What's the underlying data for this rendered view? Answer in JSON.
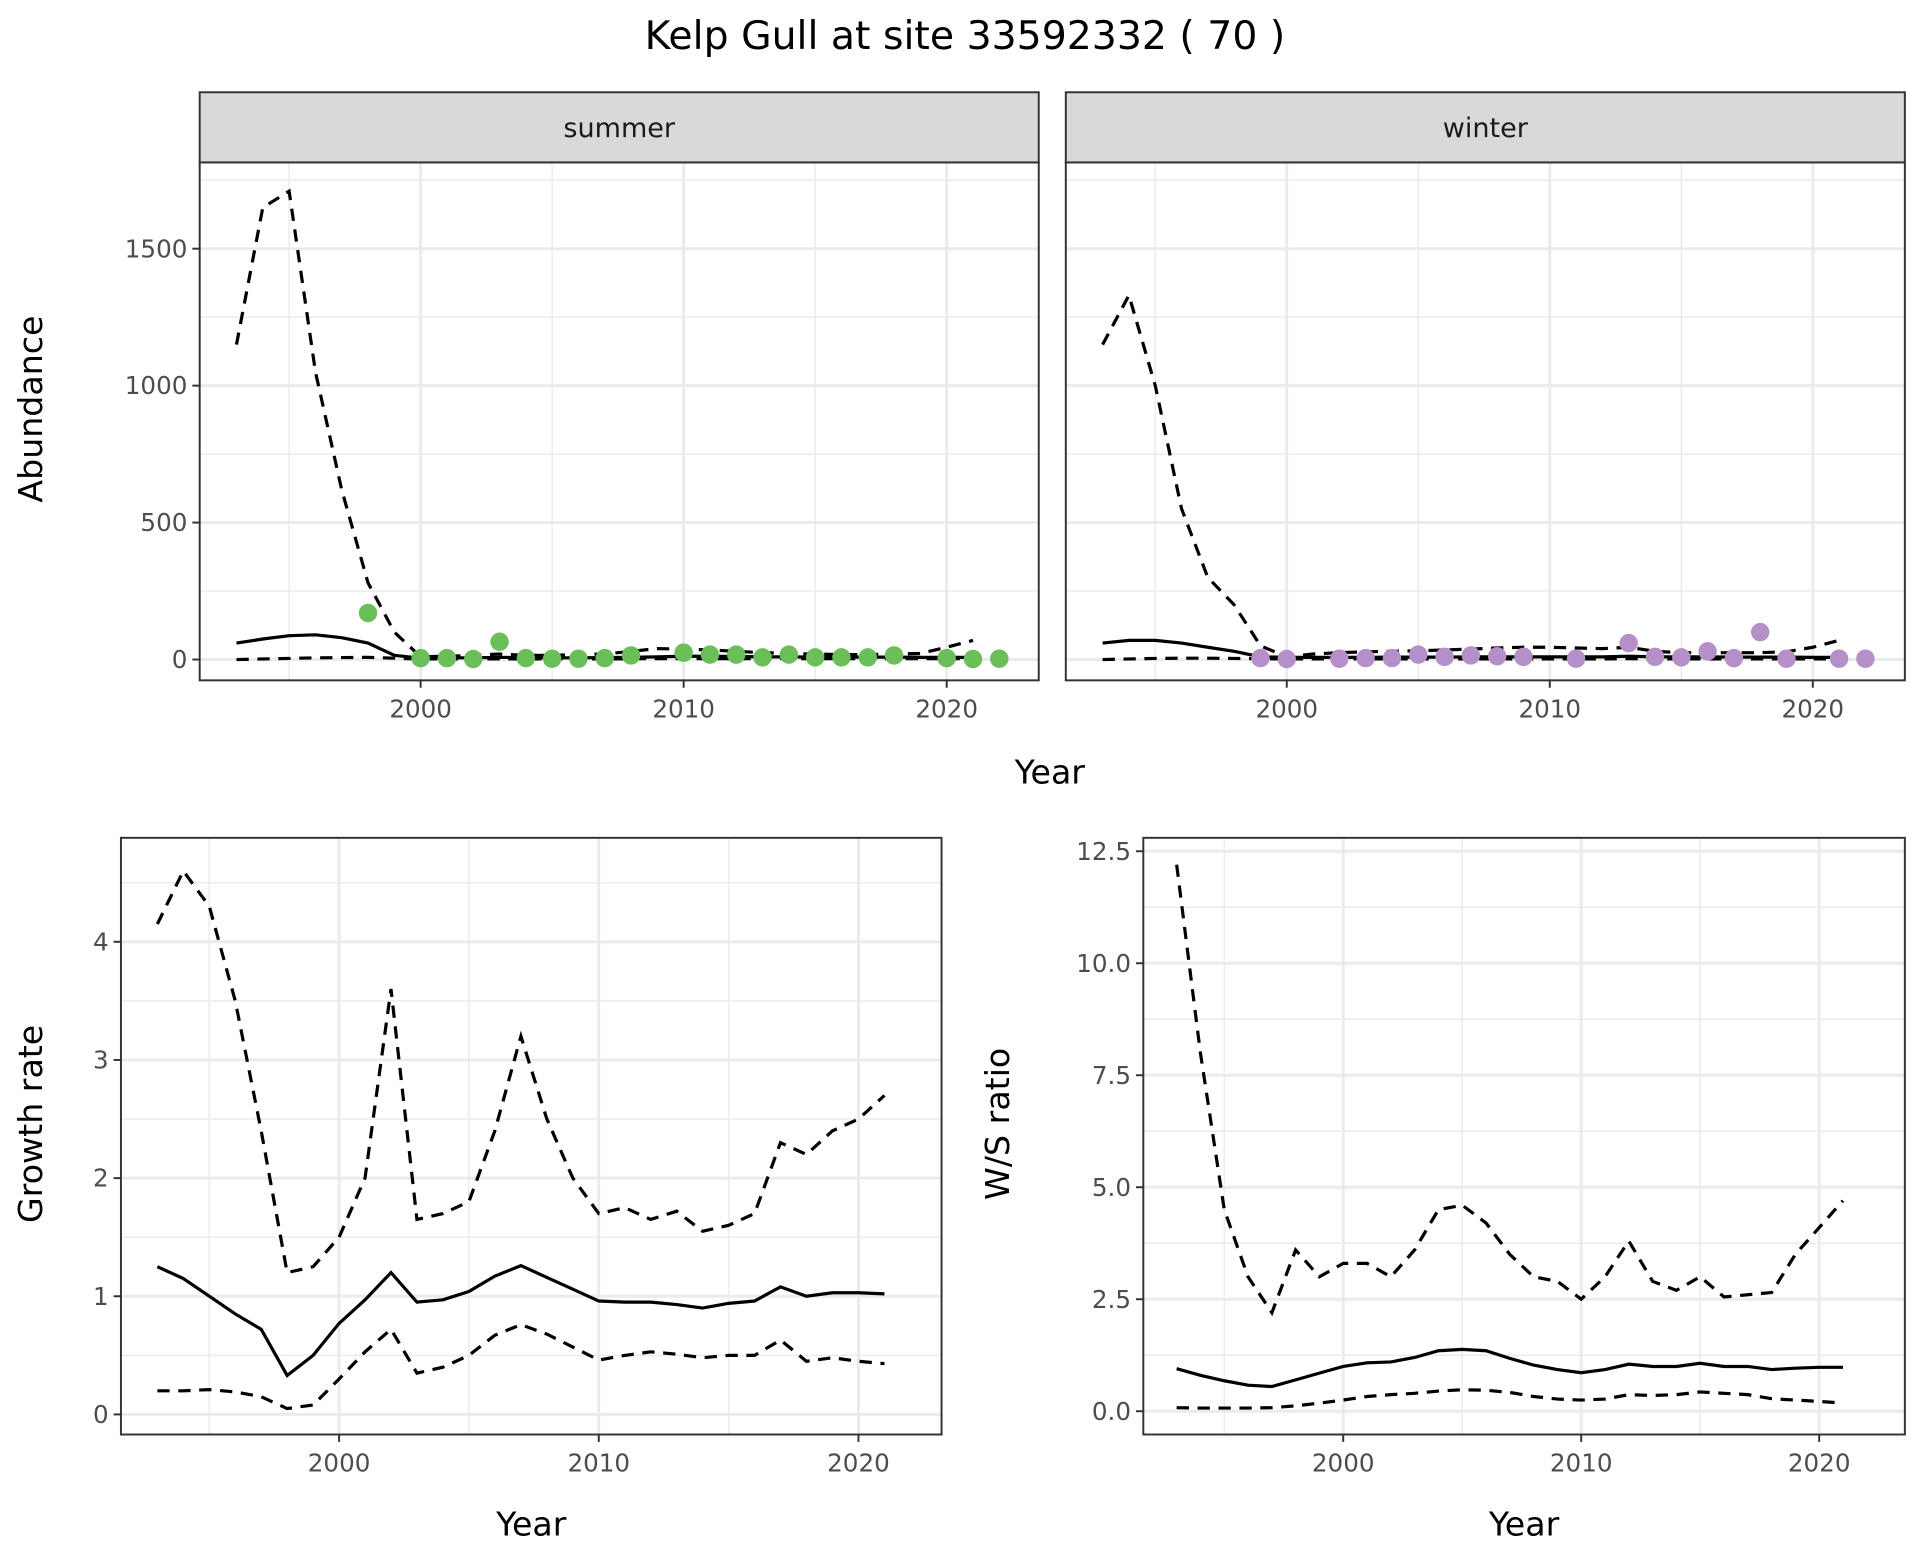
{
  "title": "Kelp Gull at site 33592332 ( 70 )",
  "chart_data": [
    {
      "type": "line",
      "facet": "summer",
      "ylabel": "Abundance",
      "xlabel": "",
      "xlim": [
        1991.6,
        2023.5
      ],
      "ylim": [
        -76,
        1815
      ],
      "xticks": [
        2000,
        2010,
        2020
      ],
      "yticks": [
        0,
        500,
        1000,
        1500
      ],
      "grid": true,
      "point_color": "#6ABF59",
      "x": [
        1993,
        1994,
        1995,
        1996,
        1997,
        1998,
        1999,
        2000,
        2001,
        2002,
        2003,
        2004,
        2005,
        2006,
        2007,
        2008,
        2009,
        2010,
        2011,
        2012,
        2013,
        2014,
        2015,
        2016,
        2017,
        2018,
        2019,
        2020,
        2021
      ],
      "upper": [
        1150,
        1650,
        1710,
        1050,
        620,
        280,
        100,
        10,
        12,
        15,
        20,
        15,
        15,
        18,
        20,
        30,
        40,
        38,
        35,
        30,
        25,
        22,
        20,
        18,
        18,
        20,
        22,
        45,
        70
      ],
      "estimate": [
        60,
        75,
        87,
        90,
        80,
        60,
        15,
        5,
        6,
        6,
        8,
        7,
        6,
        6,
        7,
        8,
        10,
        12,
        12,
        11,
        10,
        10,
        9,
        9,
        9,
        9,
        8,
        8,
        8
      ],
      "lower": [
        0,
        2,
        4,
        6,
        7,
        8,
        5,
        2,
        2,
        2,
        2,
        2,
        2,
        2,
        2,
        3,
        3,
        3,
        3,
        3,
        3,
        3,
        3,
        3,
        3,
        3,
        3,
        3,
        3
      ],
      "points": {
        "x": [
          1998,
          2000,
          2001,
          2002,
          2003,
          2004,
          2005,
          2006,
          2007,
          2008,
          2010,
          2011,
          2012,
          2013,
          2014,
          2015,
          2016,
          2017,
          2018,
          2020,
          2021,
          2022
        ],
        "y": [
          170,
          5,
          5,
          2,
          65,
          5,
          3,
          3,
          5,
          15,
          25,
          18,
          18,
          8,
          18,
          8,
          8,
          8,
          15,
          5,
          2,
          3
        ]
      }
    },
    {
      "type": "line",
      "facet": "winter",
      "ylabel": "",
      "xlabel": "",
      "xlim": [
        1991.6,
        2023.5
      ],
      "ylim": [
        -76,
        1815
      ],
      "xticks": [
        2000,
        2010,
        2020
      ],
      "grid": true,
      "point_color": "#B48FC8",
      "x": [
        1993,
        1994,
        1995,
        1996,
        1997,
        1998,
        1999,
        2000,
        2001,
        2002,
        2003,
        2004,
        2005,
        2006,
        2007,
        2008,
        2009,
        2010,
        2011,
        2012,
        2013,
        2014,
        2015,
        2016,
        2017,
        2018,
        2019,
        2020,
        2021
      ],
      "upper": [
        1150,
        1330,
        1000,
        550,
        300,
        200,
        50,
        10,
        20,
        25,
        28,
        30,
        32,
        35,
        38,
        42,
        45,
        45,
        42,
        40,
        45,
        30,
        25,
        25,
        25,
        25,
        28,
        45,
        70
      ],
      "estimate": [
        60,
        70,
        70,
        60,
        45,
        30,
        10,
        8,
        8,
        8,
        8,
        9,
        9,
        9,
        10,
        10,
        10,
        10,
        10,
        10,
        12,
        10,
        10,
        10,
        9,
        9,
        9,
        8,
        8
      ],
      "lower": [
        0,
        2,
        4,
        5,
        5,
        4,
        3,
        2,
        2,
        2,
        2,
        2,
        2,
        2,
        2,
        2,
        2,
        2,
        2,
        2,
        3,
        2,
        2,
        2,
        2,
        2,
        2,
        2,
        2
      ],
      "points": {
        "x": [
          1999,
          2000,
          2002,
          2003,
          2004,
          2005,
          2006,
          2007,
          2008,
          2009,
          2011,
          2013,
          2014,
          2015,
          2016,
          2017,
          2018,
          2019,
          2021,
          2022
        ],
        "y": [
          5,
          2,
          3,
          5,
          5,
          18,
          10,
          15,
          12,
          10,
          3,
          60,
          10,
          8,
          30,
          5,
          100,
          3,
          3,
          3
        ]
      }
    },
    {
      "type": "line",
      "ylabel": "Growth rate",
      "xlabel": "Year",
      "xlim": [
        1991.6,
        2023.2
      ],
      "ylim": [
        -0.17,
        4.88
      ],
      "xticks": [
        2000,
        2010,
        2020
      ],
      "yticks": [
        0,
        1,
        2,
        3,
        4
      ],
      "grid": true,
      "x": [
        1993,
        1994,
        1995,
        1996,
        1997,
        1998,
        1999,
        2000,
        2001,
        2002,
        2003,
        2004,
        2005,
        2006,
        2007,
        2008,
        2009,
        2010,
        2011,
        2012,
        2013,
        2014,
        2015,
        2016,
        2017,
        2018,
        2019,
        2020,
        2021
      ],
      "upper": [
        4.15,
        4.6,
        4.3,
        3.5,
        2.4,
        1.2,
        1.25,
        1.5,
        2.0,
        3.6,
        1.65,
        1.7,
        1.8,
        2.4,
        3.2,
        2.5,
        2.0,
        1.7,
        1.75,
        1.65,
        1.72,
        1.55,
        1.6,
        1.7,
        2.3,
        2.2,
        2.4,
        2.5,
        2.7
      ],
      "estimate": [
        1.25,
        1.15,
        1.0,
        0.85,
        0.72,
        0.33,
        0.5,
        0.77,
        0.97,
        1.2,
        0.95,
        0.97,
        1.04,
        1.17,
        1.26,
        1.16,
        1.06,
        0.96,
        0.95,
        0.95,
        0.93,
        0.9,
        0.94,
        0.96,
        1.08,
        1.0,
        1.03,
        1.03,
        1.02
      ],
      "lower": [
        0.2,
        0.2,
        0.21,
        0.19,
        0.15,
        0.05,
        0.08,
        0.3,
        0.53,
        0.72,
        0.35,
        0.4,
        0.5,
        0.67,
        0.76,
        0.68,
        0.57,
        0.46,
        0.5,
        0.53,
        0.51,
        0.48,
        0.5,
        0.5,
        0.63,
        0.45,
        0.48,
        0.45,
        0.43
      ]
    },
    {
      "type": "line",
      "ylabel": "W/S ratio",
      "xlabel": "Year",
      "xlim": [
        1991.6,
        2023.6
      ],
      "ylim": [
        -0.52,
        12.8
      ],
      "xticks": [
        2000,
        2010,
        2020
      ],
      "yticks": [
        0.0,
        2.5,
        5.0,
        7.5,
        10.0,
        12.5
      ],
      "ytick_labels": [
        "0.0",
        "2.5",
        "5.0",
        "7.5",
        "10.0",
        "12.5"
      ],
      "grid": true,
      "x": [
        1993,
        1994,
        1995,
        1996,
        1997,
        1998,
        1999,
        2000,
        2001,
        2002,
        2003,
        2004,
        2005,
        2006,
        2007,
        2008,
        2009,
        2010,
        2011,
        2012,
        2013,
        2014,
        2015,
        2016,
        2017,
        2018,
        2019,
        2020,
        2021
      ],
      "upper": [
        12.2,
        8.0,
        4.5,
        3.0,
        2.2,
        3.6,
        3.0,
        3.3,
        3.3,
        3.0,
        3.6,
        4.5,
        4.6,
        4.2,
        3.5,
        3.0,
        2.9,
        2.5,
        3.0,
        3.8,
        2.9,
        2.7,
        3.0,
        2.55,
        2.6,
        2.65,
        3.5,
        4.1,
        4.7
      ],
      "estimate": [
        0.95,
        0.8,
        0.68,
        0.58,
        0.55,
        0.7,
        0.85,
        1.0,
        1.08,
        1.1,
        1.2,
        1.35,
        1.38,
        1.35,
        1.18,
        1.03,
        0.93,
        0.86,
        0.93,
        1.05,
        1.0,
        1.0,
        1.07,
        1.0,
        1.0,
        0.93,
        0.96,
        0.98,
        0.98
      ],
      "lower": [
        0.08,
        0.07,
        0.07,
        0.07,
        0.08,
        0.12,
        0.18,
        0.25,
        0.33,
        0.37,
        0.4,
        0.45,
        0.48,
        0.47,
        0.42,
        0.33,
        0.27,
        0.25,
        0.27,
        0.37,
        0.35,
        0.37,
        0.43,
        0.4,
        0.37,
        0.28,
        0.25,
        0.22,
        0.18
      ]
    }
  ],
  "shared_xlabel_top": "Year"
}
